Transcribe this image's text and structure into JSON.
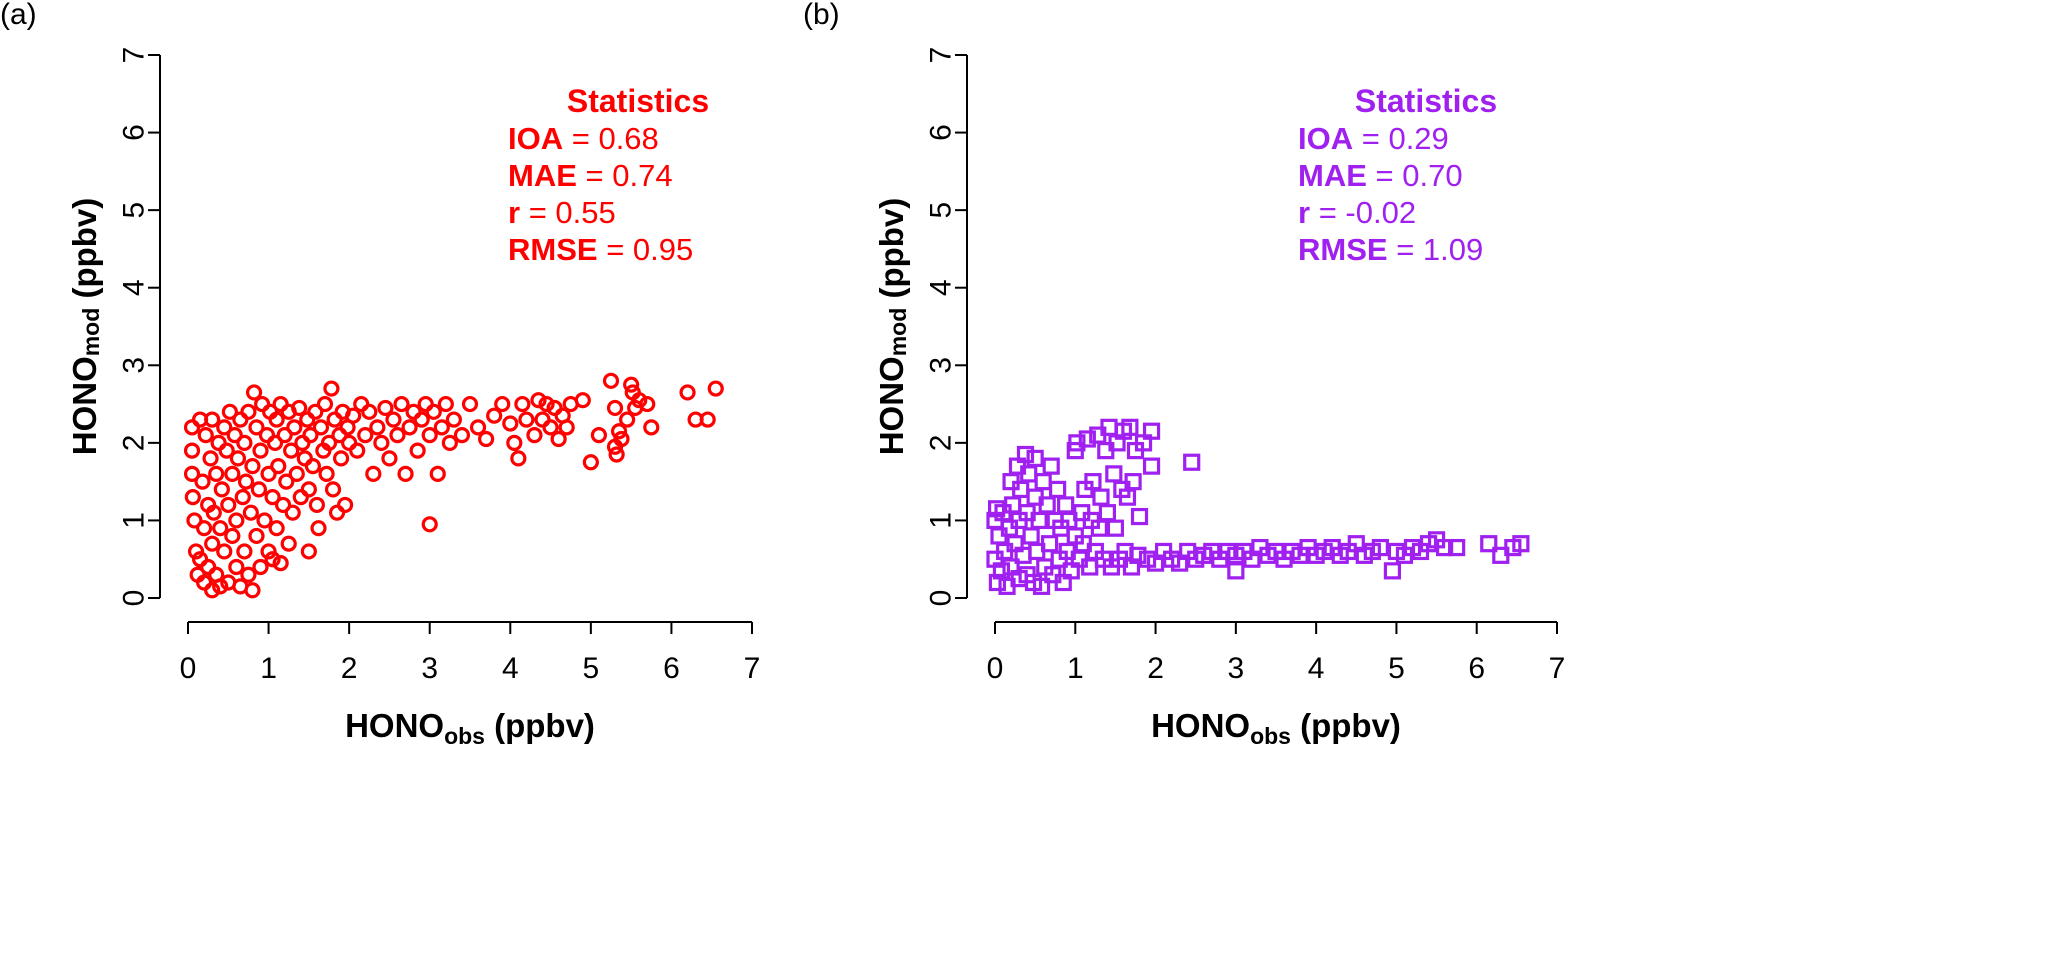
{
  "figure": {
    "panel_labels": [
      "(a)",
      "(b)"
    ]
  },
  "chart_data": [
    {
      "type": "scatter",
      "panel": "(a)",
      "marker": "circle",
      "color": "#ff0000",
      "xlabel_main": "HONO",
      "xlabel_sub": "obs",
      "xlabel_unit": " (ppbv)",
      "ylabel_main": "HONO",
      "ylabel_sub": "mod",
      "ylabel_unit": " (ppbv)",
      "xlim": [
        0,
        7
      ],
      "ylim": [
        0,
        7
      ],
      "xticks": [
        "0",
        "1",
        "2",
        "3",
        "4",
        "5",
        "6",
        "7"
      ],
      "yticks": [
        "0",
        "1",
        "2",
        "3",
        "4",
        "5",
        "6",
        "7"
      ],
      "stats": {
        "title": "Statistics",
        "rows": [
          {
            "name": "IOA",
            "value": " = 0.68"
          },
          {
            "name": "MAE",
            "value": " = 0.74"
          },
          {
            "name": "r",
            "value": " = 0.55"
          },
          {
            "name": "RMSE",
            "value": " = 0.95"
          }
        ]
      },
      "points": [
        [
          0.05,
          1.9
        ],
        [
          0.05,
          2.2
        ],
        [
          0.05,
          1.6
        ],
        [
          0.06,
          1.3
        ],
        [
          0.08,
          1.0
        ],
        [
          0.1,
          0.6
        ],
        [
          0.12,
          0.3
        ],
        [
          0.15,
          2.3
        ],
        [
          0.15,
          0.5
        ],
        [
          0.18,
          1.5
        ],
        [
          0.2,
          0.9
        ],
        [
          0.2,
          0.2
        ],
        [
          0.22,
          2.1
        ],
        [
          0.25,
          1.2
        ],
        [
          0.25,
          0.4
        ],
        [
          0.28,
          1.8
        ],
        [
          0.3,
          0.1
        ],
        [
          0.3,
          0.7
        ],
        [
          0.3,
          2.3
        ],
        [
          0.32,
          1.1
        ],
        [
          0.35,
          1.6
        ],
        [
          0.35,
          0.3
        ],
        [
          0.38,
          2.0
        ],
        [
          0.4,
          0.9
        ],
        [
          0.4,
          0.15
        ],
        [
          0.42,
          1.4
        ],
        [
          0.45,
          2.2
        ],
        [
          0.45,
          0.6
        ],
        [
          0.48,
          1.9
        ],
        [
          0.5,
          0.2
        ],
        [
          0.5,
          1.2
        ],
        [
          0.52,
          2.4
        ],
        [
          0.55,
          0.8
        ],
        [
          0.55,
          1.6
        ],
        [
          0.58,
          2.1
        ],
        [
          0.6,
          0.4
        ],
        [
          0.6,
          1.0
        ],
        [
          0.62,
          1.8
        ],
        [
          0.65,
          2.3
        ],
        [
          0.65,
          0.15
        ],
        [
          0.68,
          1.3
        ],
        [
          0.7,
          0.6
        ],
        [
          0.7,
          2.0
        ],
        [
          0.72,
          1.5
        ],
        [
          0.75,
          0.3
        ],
        [
          0.75,
          2.4
        ],
        [
          0.78,
          1.1
        ],
        [
          0.8,
          0.1
        ],
        [
          0.8,
          1.7
        ],
        [
          0.82,
          2.65
        ],
        [
          0.85,
          0.8
        ],
        [
          0.85,
          2.2
        ],
        [
          0.88,
          1.4
        ],
        [
          0.9,
          0.4
        ],
        [
          0.9,
          1.9
        ],
        [
          0.92,
          2.5
        ],
        [
          0.95,
          1.0
        ],
        [
          0.98,
          2.1
        ],
        [
          1.0,
          0.6
        ],
        [
          1.0,
          1.6
        ],
        [
          1.02,
          2.4
        ],
        [
          1.05,
          0.5
        ],
        [
          1.05,
          1.3
        ],
        [
          1.08,
          2.0
        ],
        [
          1.1,
          0.9
        ],
        [
          1.1,
          2.3
        ],
        [
          1.12,
          1.7
        ],
        [
          1.15,
          0.45
        ],
        [
          1.15,
          2.5
        ],
        [
          1.18,
          1.2
        ],
        [
          1.2,
          2.1
        ],
        [
          1.22,
          1.5
        ],
        [
          1.25,
          0.7
        ],
        [
          1.25,
          2.4
        ],
        [
          1.28,
          1.9
        ],
        [
          1.3,
          1.1
        ],
        [
          1.32,
          2.2
        ],
        [
          1.35,
          1.6
        ],
        [
          1.38,
          2.45
        ],
        [
          1.4,
          1.3
        ],
        [
          1.42,
          2.0
        ],
        [
          1.45,
          1.8
        ],
        [
          1.48,
          2.3
        ],
        [
          1.5,
          0.6
        ],
        [
          1.5,
          1.4
        ],
        [
          1.52,
          2.1
        ],
        [
          1.55,
          1.7
        ],
        [
          1.58,
          2.4
        ],
        [
          1.6,
          1.2
        ],
        [
          1.62,
          0.9
        ],
        [
          1.65,
          2.2
        ],
        [
          1.68,
          1.9
        ],
        [
          1.7,
          2.5
        ],
        [
          1.72,
          1.6
        ],
        [
          1.75,
          2.0
        ],
        [
          1.78,
          2.7
        ],
        [
          1.8,
          1.4
        ],
        [
          1.82,
          2.3
        ],
        [
          1.85,
          1.1
        ],
        [
          1.88,
          2.1
        ],
        [
          1.9,
          1.8
        ],
        [
          1.92,
          2.4
        ],
        [
          1.95,
          1.2
        ],
        [
          1.98,
          2.2
        ],
        [
          2.0,
          2.0
        ],
        [
          2.05,
          2.35
        ],
        [
          2.1,
          1.9
        ],
        [
          2.15,
          2.5
        ],
        [
          2.2,
          2.1
        ],
        [
          2.25,
          2.4
        ],
        [
          2.3,
          1.6
        ],
        [
          2.35,
          2.2
        ],
        [
          2.4,
          2.0
        ],
        [
          2.45,
          2.45
        ],
        [
          2.5,
          1.8
        ],
        [
          2.55,
          2.3
        ],
        [
          2.6,
          2.1
        ],
        [
          2.65,
          2.5
        ],
        [
          2.7,
          1.6
        ],
        [
          2.75,
          2.2
        ],
        [
          2.8,
          2.4
        ],
        [
          2.85,
          1.9
        ],
        [
          2.9,
          2.3
        ],
        [
          2.95,
          2.5
        ],
        [
          3.0,
          0.95
        ],
        [
          3.0,
          2.1
        ],
        [
          3.05,
          2.4
        ],
        [
          3.1,
          1.6
        ],
        [
          3.15,
          2.2
        ],
        [
          3.2,
          2.5
        ],
        [
          3.25,
          2.0
        ],
        [
          3.3,
          2.3
        ],
        [
          3.4,
          2.1
        ],
        [
          3.5,
          2.5
        ],
        [
          3.6,
          2.2
        ],
        [
          3.7,
          2.05
        ],
        [
          3.8,
          2.35
        ],
        [
          3.9,
          2.5
        ],
        [
          4.0,
          2.25
        ],
        [
          4.05,
          2.0
        ],
        [
          4.1,
          1.8
        ],
        [
          4.15,
          2.5
        ],
        [
          4.2,
          2.3
        ],
        [
          4.3,
          2.1
        ],
        [
          4.35,
          2.55
        ],
        [
          4.4,
          2.3
        ],
        [
          4.45,
          2.5
        ],
        [
          4.5,
          2.2
        ],
        [
          4.55,
          2.45
        ],
        [
          4.6,
          2.05
        ],
        [
          4.65,
          2.35
        ],
        [
          4.7,
          2.2
        ],
        [
          4.75,
          2.5
        ],
        [
          4.9,
          2.55
        ],
        [
          5.0,
          1.75
        ],
        [
          5.1,
          2.1
        ],
        [
          5.25,
          2.8
        ],
        [
          5.3,
          2.45
        ],
        [
          5.3,
          1.95
        ],
        [
          5.32,
          1.85
        ],
        [
          5.35,
          2.15
        ],
        [
          5.38,
          2.05
        ],
        [
          5.45,
          2.3
        ],
        [
          5.5,
          2.75
        ],
        [
          5.52,
          2.65
        ],
        [
          5.55,
          2.45
        ],
        [
          5.6,
          2.55
        ],
        [
          5.7,
          2.5
        ],
        [
          5.75,
          2.2
        ],
        [
          6.2,
          2.65
        ],
        [
          6.3,
          2.3
        ],
        [
          6.45,
          2.3
        ],
        [
          6.55,
          2.7
        ]
      ]
    },
    {
      "type": "scatter",
      "panel": "(b)",
      "marker": "square",
      "color": "#a020f0",
      "xlabel_main": "HONO",
      "xlabel_sub": "obs",
      "xlabel_unit": " (ppbv)",
      "ylabel_main": "HONO",
      "ylabel_sub": "mod",
      "ylabel_unit": " (ppbv)",
      "xlim": [
        0,
        7
      ],
      "ylim": [
        0,
        7
      ],
      "xticks": [
        "0",
        "1",
        "2",
        "3",
        "4",
        "5",
        "6",
        "7"
      ],
      "yticks": [
        "0",
        "1",
        "2",
        "3",
        "4",
        "5",
        "6",
        "7"
      ],
      "stats": {
        "title": "Statistics",
        "rows": [
          {
            "name": "IOA",
            "value": " = 0.29"
          },
          {
            "name": "MAE",
            "value": " = 0.70"
          },
          {
            "name": "r",
            "value": " = -0.02"
          },
          {
            "name": "RMSE",
            "value": " = 1.09"
          }
        ]
      },
      "points": [
        [
          0.0,
          1.0
        ],
        [
          0.0,
          0.5
        ],
        [
          0.02,
          1.15
        ],
        [
          0.03,
          0.2
        ],
        [
          0.05,
          0.8
        ],
        [
          0.08,
          0.35
        ],
        [
          0.1,
          1.1
        ],
        [
          0.12,
          0.6
        ],
        [
          0.15,
          0.15
        ],
        [
          0.18,
          0.9
        ],
        [
          0.2,
          1.5
        ],
        [
          0.2,
          0.4
        ],
        [
          0.22,
          1.2
        ],
        [
          0.25,
          0.7
        ],
        [
          0.28,
          1.7
        ],
        [
          0.3,
          0.25
        ],
        [
          0.3,
          1.0
        ],
        [
          0.32,
          1.4
        ],
        [
          0.35,
          0.55
        ],
        [
          0.38,
          1.85
        ],
        [
          0.4,
          0.3
        ],
        [
          0.4,
          1.1
        ],
        [
          0.42,
          1.6
        ],
        [
          0.45,
          0.8
        ],
        [
          0.48,
          0.2
        ],
        [
          0.5,
          1.3
        ],
        [
          0.5,
          1.8
        ],
        [
          0.52,
          0.6
        ],
        [
          0.55,
          1.0
        ],
        [
          0.58,
          0.15
        ],
        [
          0.6,
          1.5
        ],
        [
          0.62,
          0.4
        ],
        [
          0.65,
          1.2
        ],
        [
          0.68,
          0.7
        ],
        [
          0.7,
          1.7
        ],
        [
          0.72,
          0.3
        ],
        [
          0.75,
          1.0
        ],
        [
          0.78,
          1.4
        ],
        [
          0.8,
          0.5
        ],
        [
          0.82,
          0.9
        ],
        [
          0.85,
          0.2
        ],
        [
          0.88,
          1.2
        ],
        [
          0.9,
          0.6
        ],
        [
          0.92,
          1.0
        ],
        [
          0.95,
          0.35
        ],
        [
          1.0,
          0.8
        ],
        [
          1.0,
          1.9
        ],
        [
          1.02,
          2.0
        ],
        [
          1.05,
          0.5
        ],
        [
          1.08,
          1.1
        ],
        [
          1.1,
          0.7
        ],
        [
          1.12,
          1.4
        ],
        [
          1.15,
          2.05
        ],
        [
          1.18,
          0.4
        ],
        [
          1.2,
          1.0
        ],
        [
          1.22,
          1.5
        ],
        [
          1.25,
          0.6
        ],
        [
          1.28,
          2.1
        ],
        [
          1.3,
          0.9
        ],
        [
          1.32,
          1.3
        ],
        [
          1.35,
          0.5
        ],
        [
          1.38,
          1.9
        ],
        [
          1.4,
          1.1
        ],
        [
          1.42,
          2.2
        ],
        [
          1.45,
          0.4
        ],
        [
          1.48,
          1.6
        ],
        [
          1.5,
          0.9
        ],
        [
          1.52,
          2.0
        ],
        [
          1.55,
          0.5
        ],
        [
          1.58,
          1.4
        ],
        [
          1.6,
          2.15
        ],
        [
          1.62,
          0.6
        ],
        [
          1.65,
          1.3
        ],
        [
          1.68,
          2.2
        ],
        [
          1.7,
          0.4
        ],
        [
          1.72,
          1.5
        ],
        [
          1.75,
          1.9
        ],
        [
          1.78,
          0.55
        ],
        [
          1.8,
          1.05
        ],
        [
          1.85,
          2.0
        ],
        [
          1.9,
          0.5
        ],
        [
          1.95,
          1.7
        ],
        [
          1.95,
          2.15
        ],
        [
          2.0,
          0.45
        ],
        [
          2.1,
          0.6
        ],
        [
          2.2,
          0.5
        ],
        [
          2.3,
          0.45
        ],
        [
          2.4,
          0.6
        ],
        [
          2.45,
          1.75
        ],
        [
          2.5,
          0.5
        ],
        [
          2.6,
          0.55
        ],
        [
          2.7,
          0.6
        ],
        [
          2.8,
          0.5
        ],
        [
          2.9,
          0.6
        ],
        [
          3.0,
          0.35
        ],
        [
          3.0,
          0.55
        ],
        [
          3.1,
          0.6
        ],
        [
          3.2,
          0.5
        ],
        [
          3.3,
          0.65
        ],
        [
          3.4,
          0.55
        ],
        [
          3.5,
          0.6
        ],
        [
          3.6,
          0.5
        ],
        [
          3.7,
          0.6
        ],
        [
          3.8,
          0.55
        ],
        [
          3.9,
          0.65
        ],
        [
          4.0,
          0.55
        ],
        [
          4.1,
          0.6
        ],
        [
          4.2,
          0.65
        ],
        [
          4.3,
          0.55
        ],
        [
          4.4,
          0.6
        ],
        [
          4.5,
          0.7
        ],
        [
          4.6,
          0.55
        ],
        [
          4.7,
          0.6
        ],
        [
          4.8,
          0.65
        ],
        [
          4.95,
          0.35
        ],
        [
          5.0,
          0.6
        ],
        [
          5.1,
          0.55
        ],
        [
          5.2,
          0.65
        ],
        [
          5.3,
          0.6
        ],
        [
          5.4,
          0.7
        ],
        [
          5.5,
          0.75
        ],
        [
          5.6,
          0.65
        ],
        [
          5.75,
          0.65
        ],
        [
          6.15,
          0.7
        ],
        [
          6.3,
          0.55
        ],
        [
          6.45,
          0.65
        ],
        [
          6.55,
          0.7
        ]
      ]
    }
  ]
}
